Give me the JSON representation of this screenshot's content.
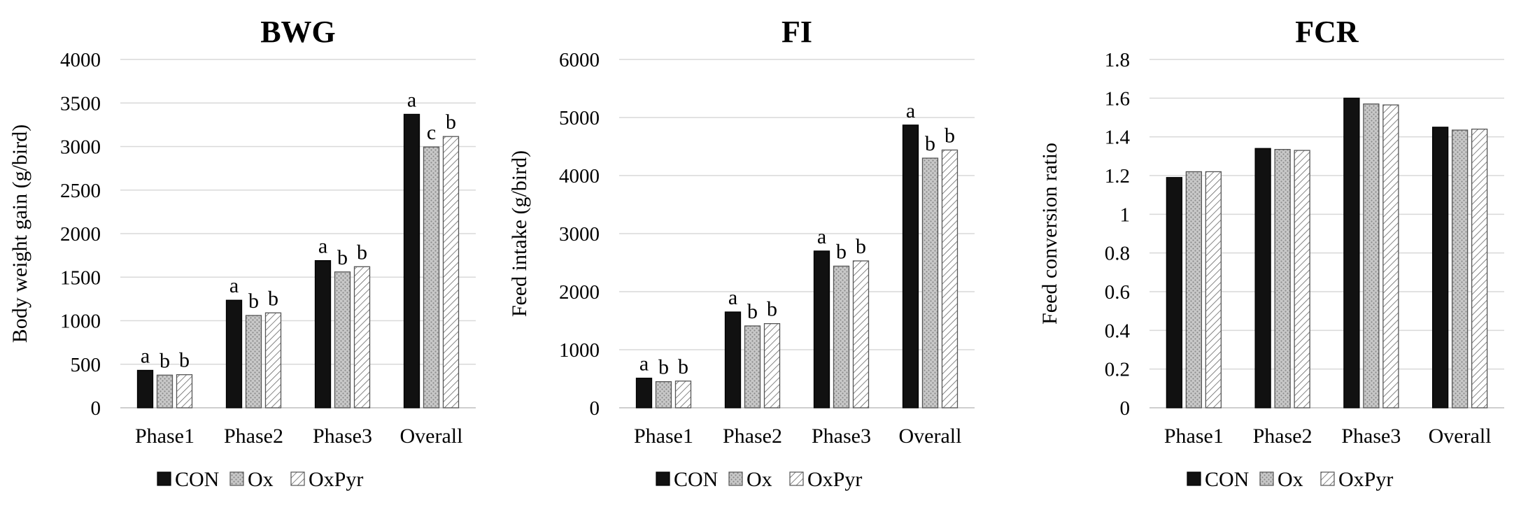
{
  "colors": {
    "CON": "#111111",
    "Ox": "#bdbdbd",
    "OxPyr": "#ffffff",
    "grid": "#d9d9d9"
  },
  "chart_data": [
    {
      "type": "bar",
      "title": "BWG",
      "ylabel": "Body weight gain (g/bird)",
      "xlabel": "",
      "categories": [
        "Phase1",
        "Phase2",
        "Phase3",
        "Overall"
      ],
      "ylim": [
        0,
        4000
      ],
      "yticks": [
        "0",
        "500",
        "1000",
        "1500",
        "2000",
        "2500",
        "3000",
        "3500",
        "4000"
      ],
      "grid": true,
      "legend": "bottom",
      "series": [
        {
          "name": "CON",
          "values": [
            430,
            1235,
            1690,
            3370
          ],
          "labels": [
            "a",
            "a",
            "a",
            "a"
          ]
        },
        {
          "name": "Ox",
          "values": [
            375,
            1060,
            1560,
            2995
          ],
          "labels": [
            "b",
            "b",
            "b",
            "c"
          ]
        },
        {
          "name": "OxPyr",
          "values": [
            380,
            1090,
            1620,
            3115
          ],
          "labels": [
            "b",
            "b",
            "b",
            "b"
          ]
        }
      ]
    },
    {
      "type": "bar",
      "title": "FI",
      "ylabel": "Feed intake (g/bird)",
      "xlabel": "",
      "categories": [
        "Phase1",
        "Phase2",
        "Phase3",
        "Overall"
      ],
      "ylim": [
        0,
        6000
      ],
      "yticks": [
        "0",
        "1000",
        "2000",
        "3000",
        "4000",
        "5000",
        "6000"
      ],
      "grid": true,
      "legend": "bottom",
      "series": [
        {
          "name": "CON",
          "values": [
            510,
            1650,
            2700,
            4870
          ],
          "labels": [
            "a",
            "a",
            "a",
            "a"
          ]
        },
        {
          "name": "Ox",
          "values": [
            450,
            1410,
            2440,
            4300
          ],
          "labels": [
            "b",
            "b",
            "b",
            "b"
          ]
        },
        {
          "name": "OxPyr",
          "values": [
            460,
            1450,
            2530,
            4440
          ],
          "labels": [
            "b",
            "b",
            "b",
            "b"
          ]
        }
      ]
    },
    {
      "type": "bar",
      "title": "FCR",
      "ylabel": "Feed conversion ratio",
      "xlabel": "",
      "categories": [
        "Phase1",
        "Phase2",
        "Phase3",
        "Overall"
      ],
      "ylim": [
        0,
        1.8
      ],
      "yticks": [
        "0",
        "0.2",
        "0.4",
        "0.6",
        "0.8",
        "1",
        "1.2",
        "1.4",
        "1.6",
        "1.8"
      ],
      "grid": true,
      "legend": "bottom",
      "series": [
        {
          "name": "CON",
          "values": [
            1.19,
            1.34,
            1.6,
            1.45
          ],
          "labels": [
            "",
            "",
            "",
            ""
          ]
        },
        {
          "name": "Ox",
          "values": [
            1.22,
            1.335,
            1.57,
            1.435
          ],
          "labels": [
            "",
            "",
            "",
            ""
          ]
        },
        {
          "name": "OxPyr",
          "values": [
            1.22,
            1.33,
            1.565,
            1.44
          ],
          "labels": [
            "",
            "",
            "",
            ""
          ]
        }
      ]
    }
  ]
}
